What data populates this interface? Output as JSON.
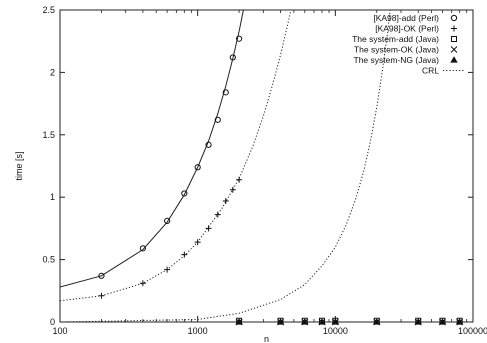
{
  "chart_data": {
    "type": "line",
    "xlabel": "n",
    "ylabel": "time [s]",
    "xscale": "log",
    "xlim": [
      100,
      100000
    ],
    "ylim": [
      0,
      2.5
    ],
    "x_ticks": [
      100,
      1000,
      10000,
      100000
    ],
    "x_tick_labels": [
      "100",
      "1000",
      "10000",
      "100000"
    ],
    "y_ticks": [
      0,
      0.5,
      1,
      1.5,
      2,
      2.5
    ],
    "y_tick_labels": [
      "0",
      "0.5",
      "1",
      "1.5",
      "2",
      "2.5"
    ],
    "grid": false,
    "legend_position": "top-right",
    "series": [
      {
        "name": "[KA98]-add (Perl)",
        "style": "points",
        "marker": "circle",
        "points": [
          [
            200,
            0.37
          ],
          [
            400,
            0.59
          ],
          [
            600,
            0.81
          ],
          [
            800,
            1.03
          ],
          [
            1000,
            1.24
          ],
          [
            1200,
            1.42
          ],
          [
            1400,
            1.62
          ],
          [
            1600,
            1.84
          ],
          [
            1800,
            2.12
          ],
          [
            2000,
            2.27
          ]
        ]
      },
      {
        "name": "[KA98]-OK (Perl)",
        "style": "points",
        "marker": "plus",
        "points": [
          [
            200,
            0.21
          ],
          [
            400,
            0.31
          ],
          [
            600,
            0.42
          ],
          [
            800,
            0.54
          ],
          [
            1000,
            0.64
          ],
          [
            1200,
            0.75
          ],
          [
            1400,
            0.86
          ],
          [
            1600,
            0.97
          ],
          [
            1800,
            1.06
          ],
          [
            2000,
            1.14
          ]
        ]
      },
      {
        "name": "The system-add (Java)",
        "style": "points",
        "marker": "square",
        "points": [
          [
            2000,
            0.01
          ],
          [
            4000,
            0.01
          ],
          [
            6000,
            0.01
          ],
          [
            8000,
            0.01
          ],
          [
            10000,
            0.01
          ],
          [
            20000,
            0.01
          ],
          [
            40000,
            0.01
          ],
          [
            60000,
            0.01
          ],
          [
            80000,
            0.01
          ]
        ]
      },
      {
        "name": "The system-OK (Java)",
        "style": "points",
        "marker": "x",
        "points": [
          [
            2000,
            0.0
          ],
          [
            4000,
            0.0
          ],
          [
            6000,
            0.0
          ],
          [
            8000,
            0.0
          ],
          [
            10000,
            0.0
          ],
          [
            20000,
            0.0
          ],
          [
            40000,
            0.0
          ],
          [
            60000,
            0.0
          ],
          [
            80000,
            0.0
          ]
        ]
      },
      {
        "name": "The system-NG (Java)",
        "style": "points",
        "marker": "triangle",
        "points": [
          [
            2000,
            0.0
          ],
          [
            4000,
            0.0
          ],
          [
            6000,
            0.0
          ],
          [
            8000,
            0.0
          ],
          [
            10000,
            0.0
          ],
          [
            20000,
            0.0
          ],
          [
            40000,
            0.0
          ],
          [
            60000,
            0.0
          ],
          [
            80000,
            0.0
          ]
        ]
      },
      {
        "name": "CRL",
        "style": "dotted-line",
        "points": [
          [
            100,
            0.0
          ],
          [
            1000,
            0.02
          ],
          [
            2000,
            0.07
          ],
          [
            4000,
            0.18
          ],
          [
            6000,
            0.3
          ],
          [
            8000,
            0.45
          ],
          [
            10000,
            0.6
          ],
          [
            12000,
            0.78
          ],
          [
            14000,
            0.98
          ],
          [
            16000,
            1.2
          ],
          [
            18000,
            1.45
          ],
          [
            20000,
            1.72
          ],
          [
            22000,
            2.02
          ],
          [
            24000,
            2.32
          ],
          [
            25000,
            2.5
          ]
        ]
      }
    ],
    "fit_curves": [
      {
        "of_series": "[KA98]-add (Perl)",
        "style": "solid",
        "points": [
          [
            100,
            0.28
          ],
          [
            200,
            0.37
          ],
          [
            400,
            0.58
          ],
          [
            600,
            0.8
          ],
          [
            800,
            1.02
          ],
          [
            1000,
            1.24
          ],
          [
            1200,
            1.45
          ],
          [
            1400,
            1.67
          ],
          [
            1600,
            1.89
          ],
          [
            1800,
            2.11
          ],
          [
            2000,
            2.33
          ],
          [
            2150,
            2.5
          ]
        ]
      },
      {
        "of_series": "[KA98]-OK (Perl)",
        "style": "dotted",
        "points": [
          [
            100,
            0.17
          ],
          [
            200,
            0.21
          ],
          [
            400,
            0.31
          ],
          [
            600,
            0.42
          ],
          [
            800,
            0.53
          ],
          [
            1000,
            0.64
          ],
          [
            1500,
            0.91
          ],
          [
            2000,
            1.15
          ],
          [
            2500,
            1.4
          ],
          [
            3000,
            1.65
          ],
          [
            3500,
            1.9
          ],
          [
            4000,
            2.14
          ],
          [
            4500,
            2.38
          ],
          [
            4750,
            2.5
          ]
        ]
      }
    ]
  }
}
